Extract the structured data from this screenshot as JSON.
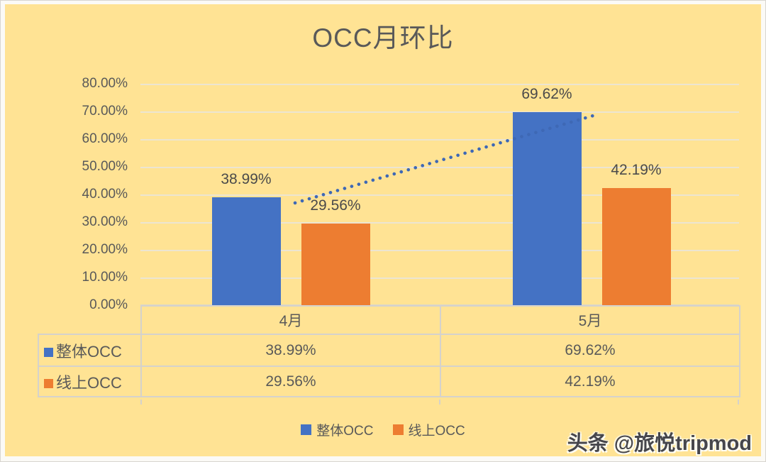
{
  "page": {
    "watermark": "头条 @旅悦tripmod"
  },
  "chart_data": {
    "type": "bar",
    "title": "OCC月环比",
    "categories": [
      "4月",
      "5月"
    ],
    "series": [
      {
        "name": "整体OCC",
        "color": "#4472C4",
        "values": [
          38.99,
          69.62
        ],
        "labels": [
          "38.99%",
          "69.62%"
        ]
      },
      {
        "name": "线上OCC",
        "color": "#ED7D31",
        "values": [
          29.56,
          42.19
        ],
        "labels": [
          "29.56%",
          "42.19%"
        ]
      }
    ],
    "ylim": [
      0,
      80
    ],
    "ytick_step": 10,
    "yticks": [
      "80.00%",
      "70.00%",
      "60.00%",
      "50.00%",
      "40.00%",
      "30.00%",
      "20.00%",
      "10.00%",
      "0.00%"
    ],
    "xlabel": "",
    "ylabel": "",
    "grid": true,
    "legend_position": "bottom",
    "legend": [
      "整体OCC",
      "线上OCC"
    ],
    "data_table_visible": true,
    "trendline": {
      "on_series": "整体OCC",
      "style": "dotted",
      "color": "#3E68B5",
      "from": "38.99%",
      "to": "69.62%"
    },
    "background_color": "#FFE394"
  },
  "colors": {
    "background": "#FFE394",
    "frame": "#FBFAF6",
    "gridline": "#ECE5D1",
    "table_border": "#D5D2CC",
    "text": "#595959",
    "data_label_text": "#4A4A4A",
    "series_blue": "#4472C4",
    "series_orange": "#ED7D31",
    "trendline_blue": "#3E68B5"
  }
}
